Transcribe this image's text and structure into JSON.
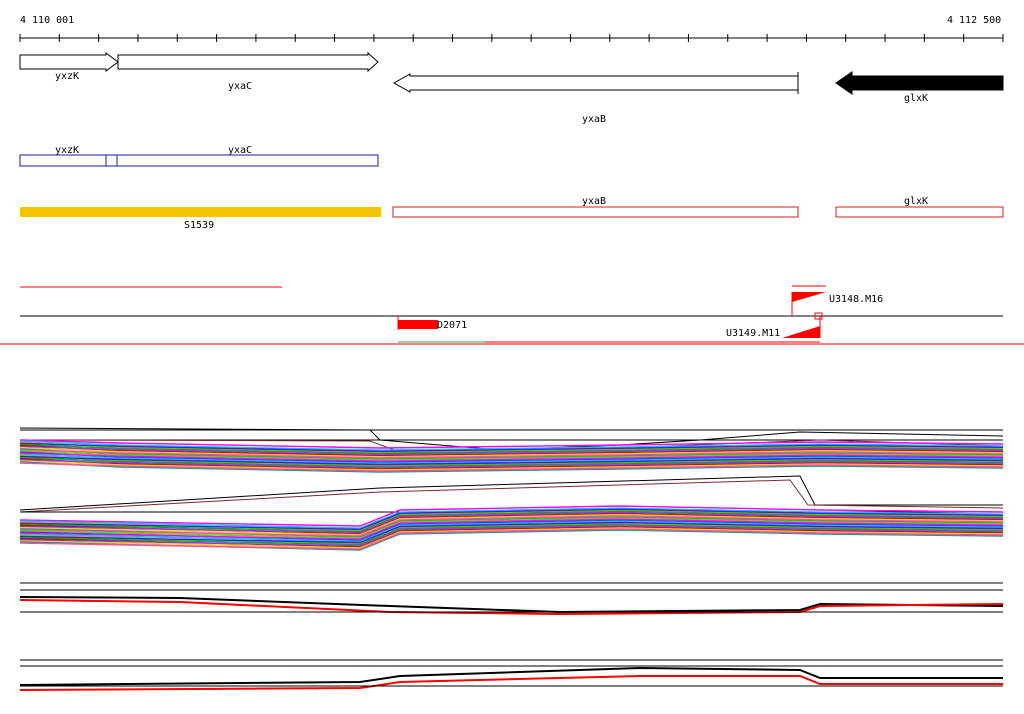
{
  "axis": {
    "start_label": "4 110 001",
    "end_label": "4 112 500"
  },
  "genes": [
    {
      "id": "yxzK",
      "label": "yxzK",
      "strand": "+",
      "style": "outline"
    },
    {
      "id": "yxaC",
      "label": "yxaC",
      "strand": "+",
      "style": "outline"
    },
    {
      "id": "yxaB",
      "label": "yxaB",
      "strand": "-",
      "style": "outline"
    },
    {
      "id": "glxK",
      "label": "glxK",
      "strand": "-",
      "style": "filled"
    }
  ],
  "cds_track": {
    "labels": [
      "yxzK",
      "yxaC"
    ],
    "color": "#1a1aa0"
  },
  "feature_track": {
    "segment_label": "S1539",
    "segment_color": "#f5c400",
    "outline_color": "#cc2222",
    "box_labels": [
      "yxaB",
      "glxK"
    ]
  },
  "reads": {
    "labels": [
      "U3148.M16",
      "D2071",
      "U3149.M11"
    ],
    "color": "#ff0000"
  },
  "colors": {
    "red_line": "#ff0000",
    "green_line": "#33aa33"
  }
}
